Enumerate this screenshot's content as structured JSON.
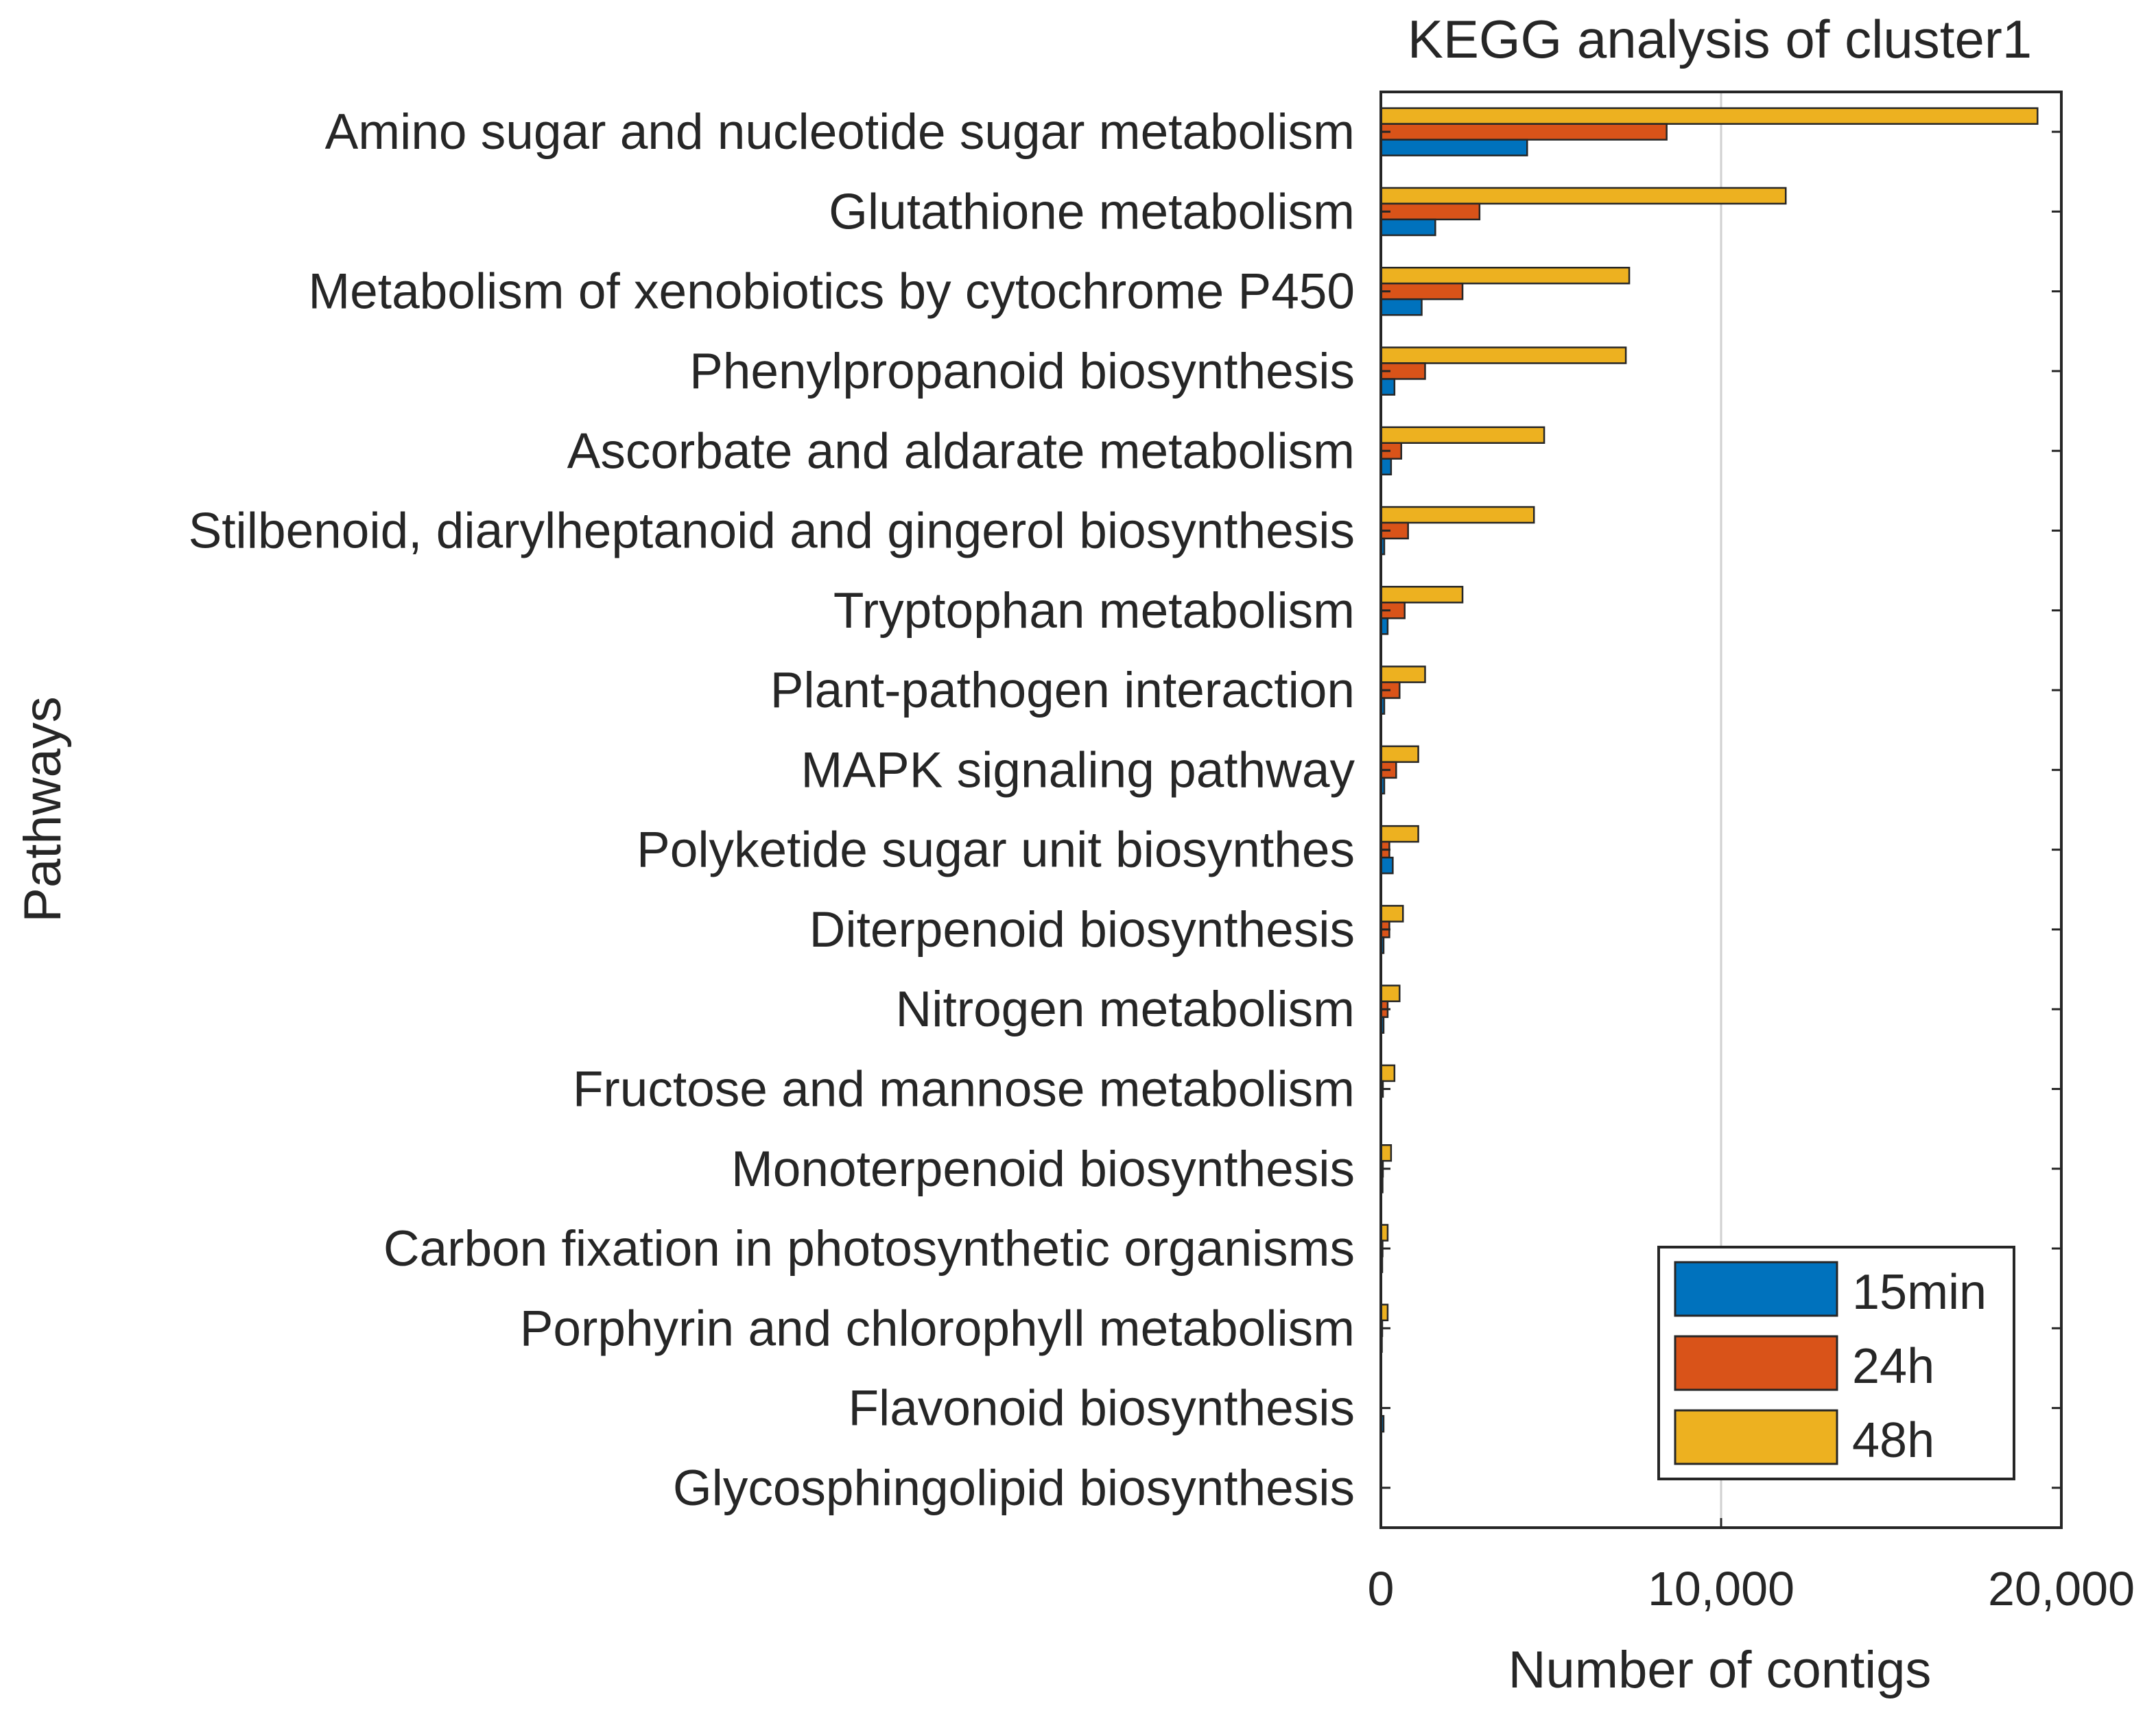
{
  "chart_data": {
    "type": "bar",
    "orientation": "horizontal",
    "title": "KEGG analysis of cluster1",
    "xlabel": "Number of contigs",
    "ylabel": "Pathways",
    "xlim": [
      0,
      20000
    ],
    "xticks": [
      0,
      10000,
      20000
    ],
    "xtick_labels": [
      "0",
      "10,000",
      "20,000"
    ],
    "grid": "x",
    "legend_position": "bottom-right",
    "categories": [
      "Amino sugar and nucleotide sugar metabolism",
      "Glutathione metabolism",
      "Metabolism of xenobiotics by cytochrome P450",
      "Phenylpropanoid biosynthesis",
      "Ascorbate and aldarate metabolism",
      "Stilbenoid, diarylheptanoid and gingerol biosynthesis",
      "Tryptophan metabolism",
      "Plant-pathogen interaction",
      "MAPK signaling pathway",
      "Polyketide sugar unit biosynthes",
      "Diterpenoid biosynthesis",
      "Nitrogen metabolism",
      "Fructose and mannose metabolism",
      "Monoterpenoid biosynthesis",
      "Carbon fixation in photosynthetic organisms",
      "Porphyrin and chlorophyll metabolism",
      "Flavonoid biosynthesis",
      "Glycosphingolipid biosynthesis"
    ],
    "series": [
      {
        "name": "15min",
        "color": "#0072BD",
        "values": [
          4300,
          1600,
          1200,
          400,
          300,
          100,
          200,
          100,
          100,
          350,
          80,
          80,
          0,
          50,
          40,
          30,
          80,
          0
        ]
      },
      {
        "name": "24h",
        "color": "#D95319",
        "values": [
          8400,
          2900,
          2400,
          1300,
          600,
          800,
          700,
          550,
          450,
          250,
          250,
          200,
          60,
          60,
          50,
          40,
          0,
          0
        ]
      },
      {
        "name": "48h",
        "color": "#EDB120",
        "values": [
          19300,
          11900,
          7300,
          7200,
          4800,
          4500,
          2400,
          1300,
          1100,
          1100,
          650,
          550,
          400,
          300,
          200,
          200,
          0,
          0
        ]
      }
    ]
  }
}
